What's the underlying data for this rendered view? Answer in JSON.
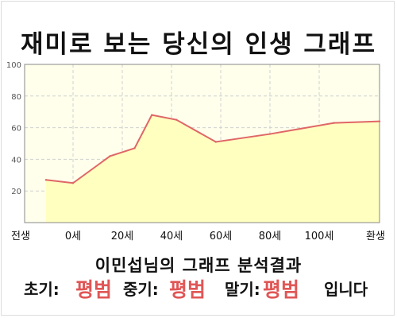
{
  "title": "재미로 보는 당신의 인생 그래프",
  "summary": {
    "heading": "이민섭님의 그래프 분석결과",
    "early_label": "초기:",
    "early_value": "평범",
    "middle_label": "중기:",
    "middle_value": "평범",
    "late_label": "말기:",
    "late_value": "평범",
    "ending": "입니다"
  },
  "chart_data": {
    "type": "area",
    "title": "재미로 보는 당신의 인생 그래프",
    "xlabel": "",
    "ylabel": "",
    "categories": [
      "전생",
      "0세",
      "20세",
      "40세",
      "60세",
      "80세",
      "100세",
      "환생"
    ],
    "series": [
      {
        "x": [
          -11,
          0,
          15,
          25,
          32,
          42,
          58,
          80,
          106,
          130
        ],
        "y": [
          27,
          25,
          42,
          47,
          68,
          65,
          51,
          56,
          63,
          64
        ]
      }
    ],
    "ylim": [
      0,
      100
    ],
    "yticks": [
      20,
      40,
      60,
      80,
      100
    ],
    "grid": true,
    "colors": {
      "line": "#e06666",
      "fill": "#ffffc0",
      "plot_bg": "#ffffec",
      "grid": "#d0d0d0",
      "value_highlight": "#e05656"
    }
  }
}
